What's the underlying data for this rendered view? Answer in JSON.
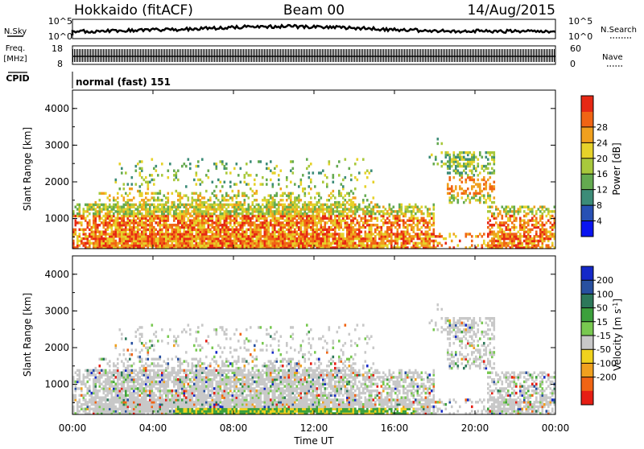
{
  "header": {
    "title": "Hokkaido (fitACF)",
    "beam": "Beam 00",
    "date": "14/Aug/2015"
  },
  "top_panels": {
    "nsky_label": "N.Sky",
    "nsearch_label": "N.Search",
    "nsky_ticks": [
      "10^5",
      "10^0"
    ],
    "nsearch_ticks": [
      "10^5",
      "10^0"
    ],
    "freq_label_1": "Freq.",
    "freq_label_2": "[MHz]",
    "freq_ticks": [
      "18",
      "8"
    ],
    "nave_label": "Nave",
    "nave_ticks": [
      "60",
      "0"
    ],
    "cpid_label": "CPID",
    "cpid_value": "normal (fast) 151"
  },
  "chart_data": [
    {
      "type": "heatmap",
      "name": "power-panel",
      "ylabel": "Slant Range [km]",
      "ylim": [
        180,
        4500
      ],
      "yticks": [
        "1000",
        "2000",
        "3000",
        "4000"
      ],
      "xlim": [
        "00:00",
        "24:00"
      ],
      "colorbar": {
        "label": "Power [dB]",
        "ticks": [
          "4",
          "8",
          "12",
          "16",
          "20",
          "24",
          "28"
        ],
        "colors": [
          "#0a14f0",
          "#2850b4",
          "#3c8c78",
          "#64aa50",
          "#a8c83c",
          "#e6d22a",
          "#f0a01e",
          "#f06414",
          "#e62814"
        ]
      }
    },
    {
      "type": "heatmap",
      "name": "velocity-panel",
      "ylabel": "Slant Range [km]",
      "ylim": [
        180,
        4500
      ],
      "yticks": [
        "1000",
        "2000",
        "3000",
        "4000"
      ],
      "xlabel": "Time UT",
      "xticks": [
        "00:00",
        "04:00",
        "08:00",
        "12:00",
        "16:00",
        "20:00",
        "00:00"
      ],
      "colorbar": {
        "label": "Velocity [m s",
        "label_sup": "-1",
        "label_end": "]",
        "ticks": [
          "200",
          "100",
          "50",
          "15",
          "-15",
          "-50",
          "-100",
          "-200"
        ],
        "colors": [
          "#1428c8",
          "#2850a0",
          "#2d785a",
          "#3ca03c",
          "#78c850",
          "#c8c8c8",
          "#f0d21e",
          "#f0a01e",
          "#f06414",
          "#e61e14"
        ]
      }
    }
  ]
}
